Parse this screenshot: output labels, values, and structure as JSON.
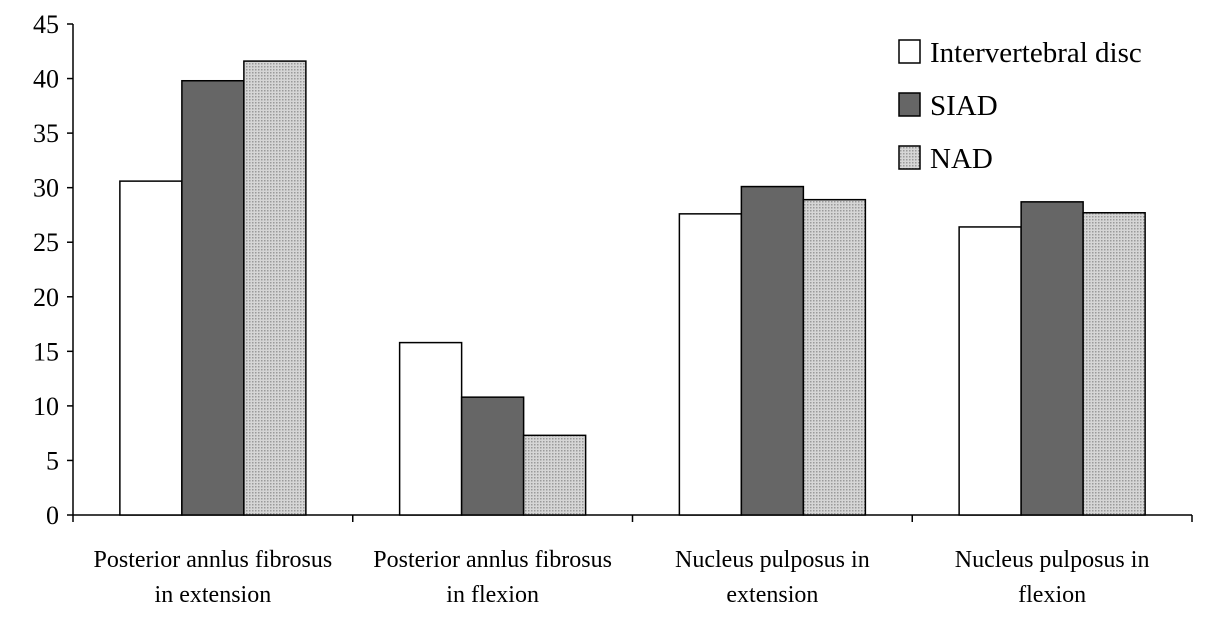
{
  "chart_data": {
    "type": "bar",
    "categories": [
      [
        "Posterior annlus fibrosus",
        "in extension"
      ],
      [
        "Posterior annlus fibrosus",
        "in flexion"
      ],
      [
        "Nucleus pulposus in",
        "extension"
      ],
      [
        "Nucleus pulposus in",
        "flexion"
      ]
    ],
    "series": [
      {
        "name": "Intervertebral disc",
        "fill": "#ffffff",
        "values": [
          30.6,
          15.8,
          27.6,
          26.4
        ]
      },
      {
        "name": "SIAD",
        "fill": "#666666",
        "values": [
          39.8,
          10.8,
          30.1,
          28.7
        ]
      },
      {
        "name": "NAD",
        "fill": "#c8c8c8",
        "values": [
          41.6,
          7.3,
          28.9,
          27.7
        ]
      }
    ],
    "ylim": [
      0,
      45
    ],
    "yticks": [
      "0",
      "5",
      "10",
      "15",
      "20",
      "25",
      "30",
      "35",
      "40",
      "45"
    ],
    "grid": false,
    "legend_position": "top-right"
  }
}
